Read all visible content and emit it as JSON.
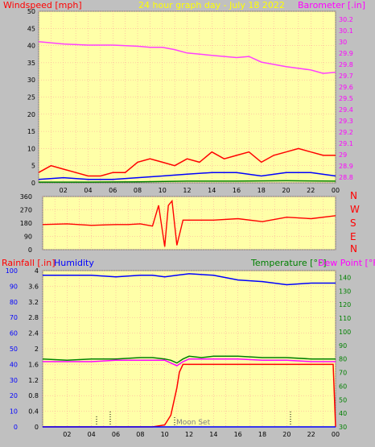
{
  "chart_data": [
    {
      "type": "line",
      "title": "24 hour graph day - July 18 2022",
      "ylabel": "Windspeed [mph]",
      "y2label": "Barometer [.in]",
      "x_ticks": [
        "02",
        "04",
        "06",
        "08",
        "10",
        "12",
        "14",
        "16",
        "18",
        "20",
        "22",
        "00"
      ],
      "ylim": [
        0,
        50
      ],
      "y_ticks": [
        0,
        5,
        10,
        15,
        20,
        25,
        30,
        35,
        40,
        45,
        50
      ],
      "y2lim": [
        28.75,
        30.27
      ],
      "y2_ticks": [
        "28.8",
        "28.9",
        "29",
        "29.1",
        "29.2",
        "29.3",
        "29.4",
        "29.5",
        "29.6",
        "29.7",
        "29.8",
        "29.9",
        "30",
        "30.1",
        "30.2"
      ],
      "grid": true,
      "series": [
        {
          "name": "Barometer",
          "color": "#ff40ff",
          "axis": "y2",
          "x": [
            0,
            2,
            4,
            6,
            8,
            9,
            10,
            11,
            12,
            14,
            16,
            17,
            18,
            20,
            22,
            23,
            24
          ],
          "y": [
            30.0,
            29.98,
            29.97,
            29.97,
            29.96,
            29.95,
            29.95,
            29.93,
            29.9,
            29.88,
            29.86,
            29.87,
            29.82,
            29.78,
            29.75,
            29.72,
            29.73
          ]
        },
        {
          "name": "Wind gust",
          "color": "#ff0000",
          "x": [
            0,
            1,
            2,
            3,
            4,
            5,
            6,
            7,
            8,
            9,
            10,
            11,
            12,
            13,
            14,
            15,
            16,
            17,
            18,
            19,
            20,
            21,
            22,
            23,
            24
          ],
          "y": [
            3,
            5,
            4,
            3,
            2,
            2,
            3,
            3,
            6,
            7,
            6,
            5,
            7,
            6,
            9,
            7,
            8,
            9,
            6,
            8,
            9,
            10,
            9,
            8,
            8
          ]
        },
        {
          "name": "Wind average",
          "color": "#0000ff",
          "x": [
            0,
            2,
            4,
            6,
            8,
            10,
            12,
            14,
            16,
            18,
            20,
            22,
            24
          ],
          "y": [
            1,
            1.5,
            1,
            1,
            1.5,
            2,
            2.5,
            3,
            3,
            2,
            3,
            3,
            2
          ]
        },
        {
          "name": "Wind low",
          "color": "#008000",
          "x": [
            0,
            4,
            8,
            12,
            16,
            20,
            24
          ],
          "y": [
            0.2,
            0.2,
            0.3,
            0.5,
            0.5,
            0.6,
            0.5
          ]
        }
      ]
    },
    {
      "type": "line",
      "ylabels": [
        "N",
        "W",
        "S",
        "E",
        "N"
      ],
      "ylim": [
        0,
        360
      ],
      "y_ticks": [
        0,
        90,
        180,
        270,
        360
      ],
      "x_ticks": [],
      "grid": true,
      "series": [
        {
          "name": "Wind direction",
          "color": "#ff0000",
          "x": [
            0,
            2,
            4,
            6,
            7,
            8,
            9,
            9.5,
            10,
            10.3,
            10.6,
            11,
            11.5,
            12,
            14,
            16,
            18,
            20,
            22,
            24
          ],
          "y": [
            170,
            175,
            165,
            170,
            170,
            175,
            160,
            300,
            20,
            300,
            330,
            30,
            200,
            200,
            200,
            210,
            190,
            220,
            210,
            230
          ]
        }
      ]
    },
    {
      "type": "line",
      "ylabel": "Rainfall [.in]",
      "ylabel2": "Humidity",
      "y2label": "Temperature [°F]",
      "y2label2": "Dew Point [°F]",
      "annotation": "Moon Set",
      "x_ticks": [
        "02",
        "04",
        "06",
        "08",
        "10",
        "12",
        "14",
        "16",
        "18",
        "20",
        "22",
        "00"
      ],
      "ylim": [
        0,
        4.0
      ],
      "y_ticks_rain": [
        "0",
        "0.4",
        "0.8",
        "1.2",
        "1.6",
        "2",
        "2.4",
        "2.8",
        "3.2",
        "3.6",
        "4"
      ],
      "y_ticks_humidity": [
        "0",
        "10",
        "20",
        "30",
        "40",
        "50",
        "60",
        "70",
        "80",
        "90",
        "100"
      ],
      "y2lim": [
        30,
        145
      ],
      "y2_ticks": [
        "30",
        "40",
        "50",
        "60",
        "70",
        "80",
        "90",
        "100",
        "110",
        "120",
        "130",
        "140"
      ],
      "grid": true,
      "series": [
        {
          "name": "Humidity",
          "color": "#0000ff",
          "axis": "humidity",
          "x": [
            0,
            2,
            4,
            6,
            8,
            9,
            10,
            11,
            12,
            14,
            16,
            18,
            20,
            22,
            24
          ],
          "y": [
            97,
            97,
            97,
            96,
            97,
            97,
            96,
            97,
            98,
            97,
            94,
            93,
            91,
            92,
            92
          ]
        },
        {
          "name": "Temperature",
          "color": "#008000",
          "axis": "y2",
          "x": [
            0,
            2,
            4,
            6,
            8,
            9,
            10,
            10.5,
            11,
            11.5,
            12,
            13,
            14,
            16,
            18,
            20,
            22,
            24
          ],
          "y": [
            80,
            79,
            80,
            80,
            81,
            81,
            80,
            79,
            77,
            80,
            82,
            81,
            82,
            82,
            81,
            81,
            80,
            80
          ]
        },
        {
          "name": "Dew Point",
          "color": "#ff00ff",
          "axis": "y2",
          "x": [
            0,
            2,
            4,
            6,
            8,
            9,
            10,
            10.5,
            11,
            11.5,
            12,
            13,
            14,
            16,
            18,
            20,
            22,
            24
          ],
          "y": [
            78,
            78,
            78,
            79,
            79,
            79,
            79,
            77,
            75,
            78,
            80,
            80,
            80,
            80,
            79,
            79,
            78,
            78
          ]
        },
        {
          "name": "Rainfall",
          "color": "#ff0000",
          "axis": "rain",
          "x": [
            0,
            8,
            9,
            10,
            10.5,
            11,
            11.2,
            11.5,
            12,
            14,
            16,
            18,
            20,
            22,
            23.8,
            24
          ],
          "y": [
            0,
            0,
            0,
            0.05,
            0.3,
            1.0,
            1.4,
            1.6,
            1.6,
            1.6,
            1.6,
            1.6,
            1.6,
            1.6,
            1.6,
            0
          ]
        },
        {
          "name": "Rainfall base",
          "color": "#0000ff",
          "axis": "rain",
          "x": [
            0,
            24
          ],
          "y": [
            0,
            0
          ]
        }
      ]
    }
  ]
}
